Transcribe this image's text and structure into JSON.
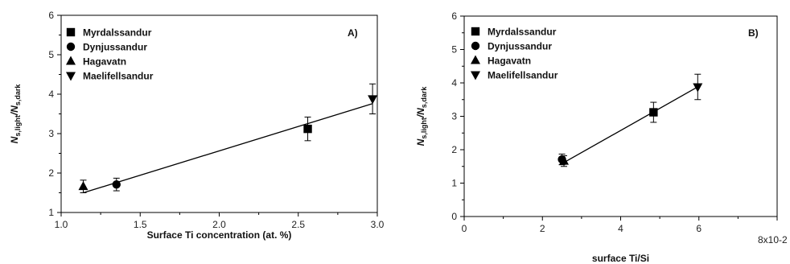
{
  "chart_data": [
    {
      "type": "scatter",
      "panel_label": "A)",
      "xlabel": "Surface Ti concentration (at. %)",
      "ylabel": "N",
      "ylabel_sub1": "s,light",
      "ylabel_mid": "/N",
      "ylabel_sub2": "s,dark",
      "xlim": [
        1.0,
        3.0
      ],
      "ylim": [
        1,
        6
      ],
      "xticks": [
        "1.0",
        "1.5",
        "2.0",
        "2.5",
        "3.0"
      ],
      "yticks": [
        "1",
        "2",
        "3",
        "4",
        "5",
        "6"
      ],
      "legend_position": "top-left",
      "grid": false,
      "series": [
        {
          "name": "Myrdalssandur",
          "marker": "square",
          "x": 2.56,
          "y": 3.12,
          "yerr": 0.3
        },
        {
          "name": "Dynjussandur",
          "marker": "circle",
          "x": 1.35,
          "y": 1.71,
          "yerr": 0.16
        },
        {
          "name": "Hagavatn",
          "marker": "triangle-up",
          "x": 1.14,
          "y": 1.66,
          "yerr": 0.16
        },
        {
          "name": "Maelifellsandur",
          "marker": "triangle-down",
          "x": 2.97,
          "y": 3.88,
          "yerr": 0.38
        }
      ],
      "fit_line": {
        "x": [
          1.14,
          2.97
        ],
        "y": [
          1.5,
          3.76
        ]
      }
    },
    {
      "type": "scatter",
      "panel_label": "B)",
      "xlabel": "surface Ti/Si",
      "ylabel": "N",
      "ylabel_sub1": "s,light",
      "ylabel_mid": "/N",
      "ylabel_sub2": "s,dark",
      "xlim": [
        0,
        8
      ],
      "ylim": [
        0,
        6
      ],
      "xticks": [
        "0",
        "2",
        "4",
        "6",
        "8x10-2"
      ],
      "yticks": [
        "0",
        "1",
        "2",
        "3",
        "4",
        "5",
        "6"
      ],
      "legend_position": "top-left",
      "grid": false,
      "series": [
        {
          "name": "Myrdalssandur",
          "marker": "square",
          "x": 4.84,
          "y": 3.12,
          "yerr": 0.3
        },
        {
          "name": "Dynjussandur",
          "marker": "circle",
          "x": 2.5,
          "y": 1.71,
          "yerr": 0.16
        },
        {
          "name": "Hagavatn",
          "marker": "triangle-up",
          "x": 2.55,
          "y": 1.66,
          "yerr": 0.16
        },
        {
          "name": "Maelifellsandur",
          "marker": "triangle-down",
          "x": 5.97,
          "y": 3.88,
          "yerr": 0.38
        }
      ],
      "fit_line": {
        "x": [
          2.48,
          5.97
        ],
        "y": [
          1.57,
          3.88
        ]
      }
    }
  ]
}
